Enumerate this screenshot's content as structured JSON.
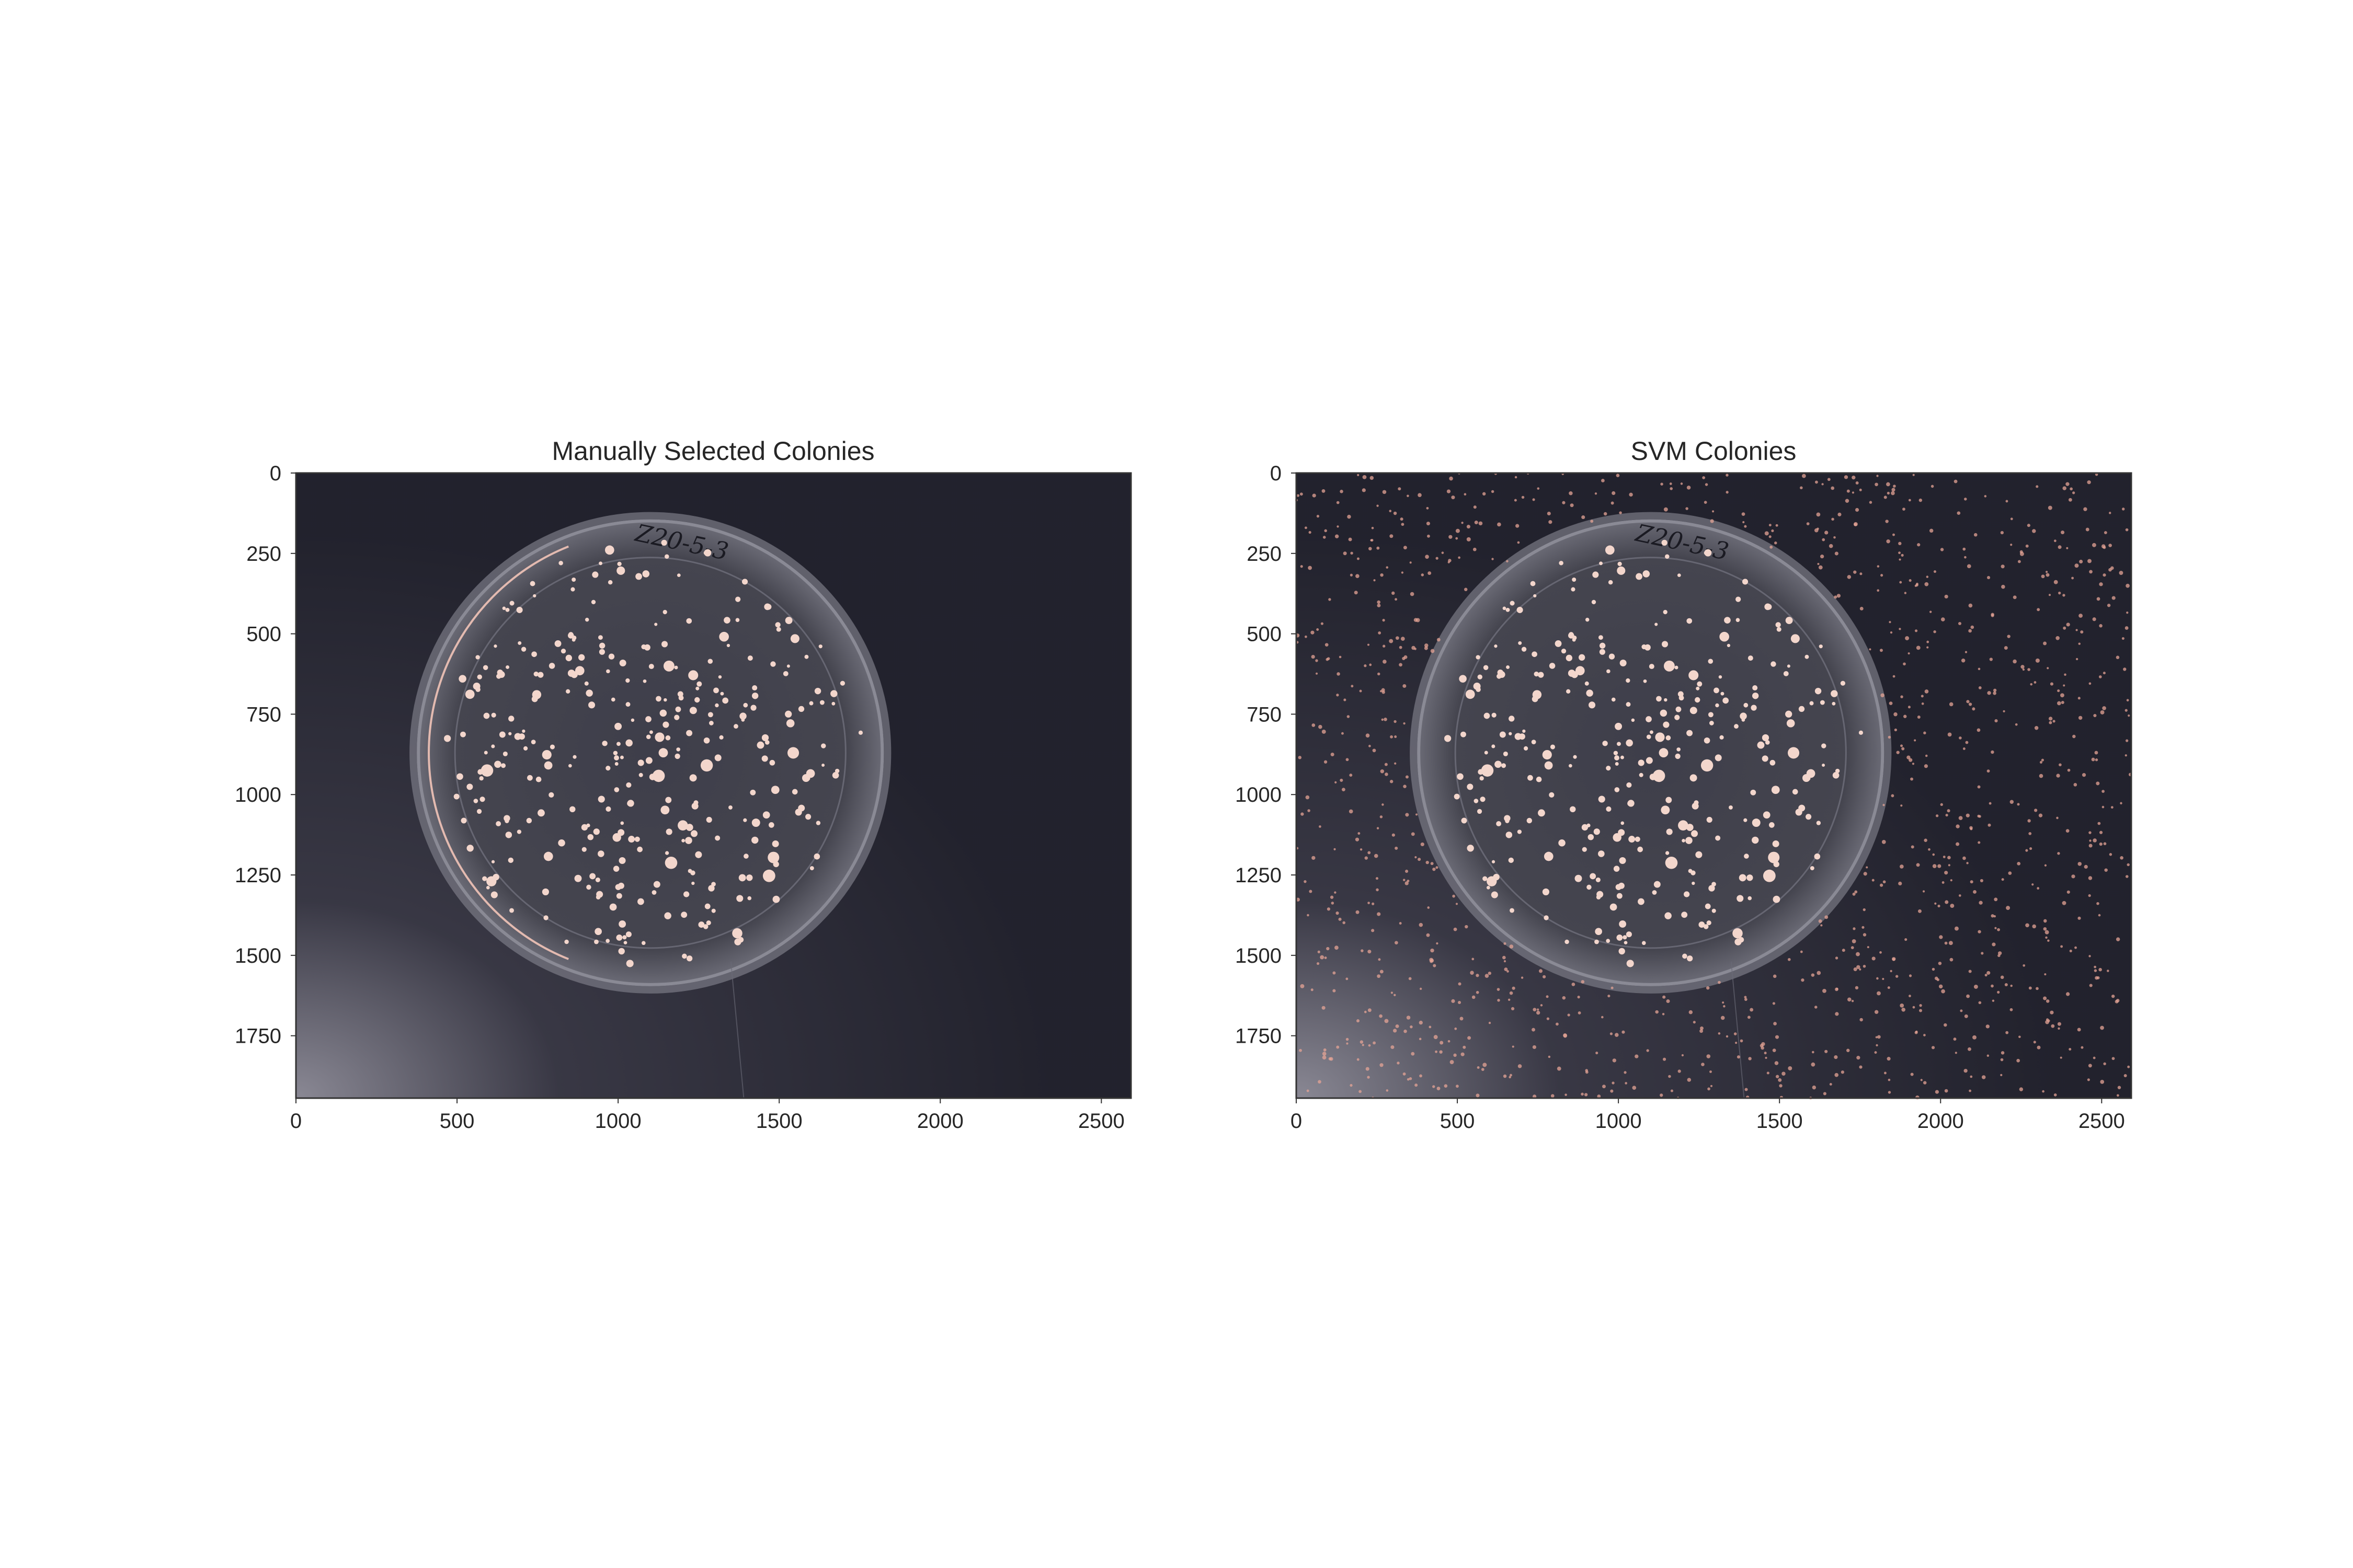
{
  "chart_data": [
    {
      "type": "image",
      "title": "Manually Selected Colonies",
      "xlim": [
        0,
        2592
      ],
      "ylim": [
        1944,
        0
      ],
      "x_ticks": [
        0,
        500,
        1000,
        1500,
        2000,
        2500
      ],
      "y_ticks": [
        0,
        250,
        500,
        750,
        1000,
        1250,
        1500,
        1750
      ],
      "grid": false,
      "image_content": {
        "plate_center": [
          1100,
          870
        ],
        "plate_radius": 720,
        "plate_label": "Z20-5-3",
        "colonies_detected": "inside-plate-only",
        "marker_color": "#f2c4b8",
        "background_color": "#24242f",
        "plate_color": "#5a5a66"
      }
    },
    {
      "type": "image",
      "title": "SVM Colonies",
      "xlim": [
        0,
        2592
      ],
      "ylim": [
        1944,
        0
      ],
      "x_ticks": [
        0,
        500,
        1000,
        1500,
        2000,
        2500
      ],
      "y_ticks": [
        0,
        250,
        500,
        750,
        1000,
        1250,
        1500,
        1750
      ],
      "grid": false,
      "image_content": {
        "plate_center": [
          1100,
          870
        ],
        "plate_radius": 720,
        "plate_label": "Z20-5-3",
        "colonies_detected": "inside-plate-and-background-noise",
        "marker_color": "#e6a496",
        "background_color": "#24242f",
        "plate_color": "#5a5a66"
      }
    }
  ]
}
